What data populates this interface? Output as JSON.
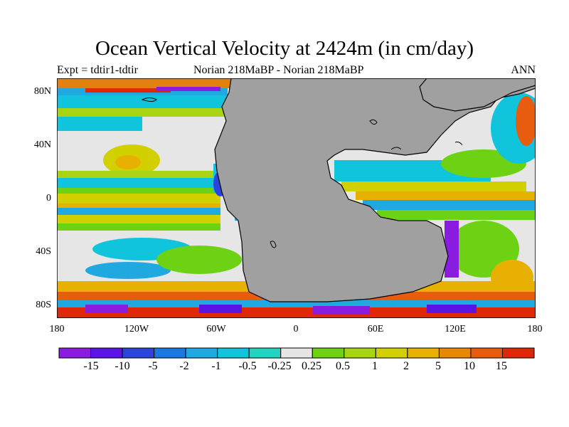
{
  "title": "Ocean Vertical Velocity at 2424m (in cm/day)",
  "subtitle_left": "Expt = tdtir1-tdtir",
  "subtitle_center": "Norian   218MaBP - Norian   218MaBP",
  "subtitle_right": "ANN",
  "lat_ticks": [
    "80N",
    "40N",
    "0",
    "40S",
    "80S"
  ],
  "lon_ticks": [
    "180",
    "120W",
    "60W",
    "0",
    "60E",
    "120E",
    "180"
  ],
  "colorbar": {
    "labels": [
      "-15",
      "-10",
      "-5",
      "-2",
      "-1",
      "-0.5",
      "-0.25",
      "0.25",
      "0.5",
      "1",
      "2",
      "5",
      "10",
      "15"
    ],
    "colors": [
      "#8a1ce0",
      "#5a14e6",
      "#2a44dc",
      "#1a78e0",
      "#20a8e0",
      "#10c4dc",
      "#20d4c0",
      "#e6e6e6",
      "#6ed214",
      "#a8d414",
      "#d2d000",
      "#e8b000",
      "#e88800",
      "#e85c10",
      "#e02808"
    ]
  },
  "land_color": "#a0a0a0"
}
